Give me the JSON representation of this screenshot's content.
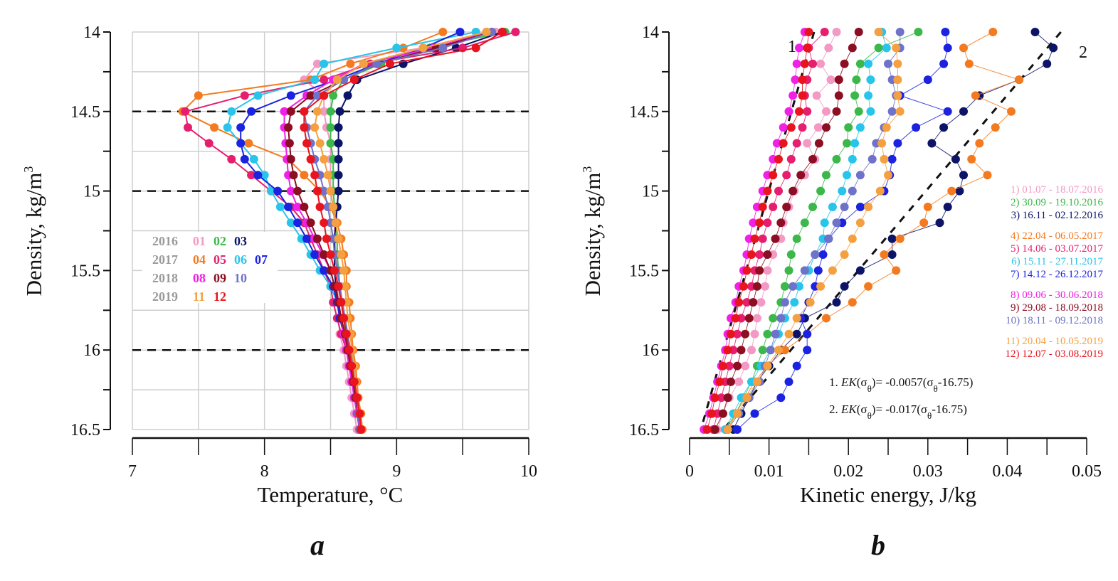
{
  "figure": {
    "panel_labels": [
      "a",
      "b"
    ]
  },
  "chart_data": [
    {
      "type": "line",
      "panel": "a",
      "title": "",
      "xlabel": "Temperature, °C",
      "ylabel": "Density, kg/m³",
      "ylabel_base": "Density, kg/m",
      "ylabel_sup": "3",
      "xlim": [
        7,
        10
      ],
      "ylim": [
        16.5,
        14
      ],
      "y_inverted": true,
      "xticks": [
        7,
        8,
        9,
        10
      ],
      "xtick_labels": [
        "7",
        "8",
        "9",
        "10"
      ],
      "yticks": [
        14,
        14.5,
        15,
        15.5,
        16,
        16.5
      ],
      "ytick_labels": [
        "14",
        "14.5",
        "15",
        "15.5",
        "16",
        "16.5"
      ],
      "grid": true,
      "reference_lines": [
        14.5,
        15.0,
        16.0
      ],
      "legend_position": "center-left",
      "legend": [
        {
          "year": "2016",
          "items": [
            {
              "label": "01",
              "series": 1
            },
            {
              "label": "02",
              "series": 2
            },
            {
              "label": "03",
              "series": 3
            }
          ]
        },
        {
          "year": "2017",
          "items": [
            {
              "label": "04",
              "series": 4
            },
            {
              "label": "05",
              "series": 5
            },
            {
              "label": "06",
              "series": 6
            },
            {
              "label": "07",
              "series": 7
            }
          ]
        },
        {
          "year": "2018",
          "items": [
            {
              "label": "08",
              "series": 8
            },
            {
              "label": "09",
              "series": 9
            },
            {
              "label": "10",
              "series": 10
            }
          ]
        },
        {
          "year": "2019",
          "items": [
            {
              "label": "11",
              "series": 11
            },
            {
              "label": "12",
              "series": 12
            }
          ]
        }
      ],
      "y": [
        14.0,
        14.1,
        14.2,
        14.3,
        14.4,
        14.5,
        14.6,
        14.7,
        14.8,
        14.9,
        15.0,
        15.1,
        15.2,
        15.3,
        15.4,
        15.5,
        15.6,
        15.7,
        15.8,
        15.9,
        16.0,
        16.1,
        16.2,
        16.3,
        16.4,
        16.5
      ],
      "series": [
        {
          "name": "01",
          "color": "#f29ac4",
          "values": [
            9.75,
            9.2,
            8.4,
            8.3,
            8.45,
            8.45,
            8.47,
            8.5,
            8.5,
            8.5,
            8.5,
            8.52,
            8.53,
            8.53,
            8.54,
            8.55,
            8.55,
            8.56,
            8.56,
            8.57,
            8.6,
            8.62,
            8.64,
            8.66,
            8.68,
            8.7
          ]
        },
        {
          "name": "02",
          "color": "#3cb84a",
          "values": [
            9.82,
            9.25,
            8.88,
            8.6,
            8.52,
            8.5,
            8.5,
            8.5,
            8.52,
            8.52,
            8.52,
            8.53,
            8.54,
            8.55,
            8.55,
            8.56,
            8.57,
            8.58,
            8.6,
            8.61,
            8.63,
            8.65,
            8.67,
            8.69,
            8.71,
            8.72
          ]
        },
        {
          "name": "03",
          "color": "#0c1468",
          "values": [
            9.8,
            9.45,
            9.05,
            8.7,
            8.63,
            8.57,
            8.56,
            8.56,
            8.56,
            8.56,
            8.56,
            8.55,
            8.54,
            8.53,
            8.53,
            8.53,
            8.54,
            8.56,
            8.58,
            8.6,
            8.62,
            8.65,
            8.67,
            8.69,
            8.7,
            8.72
          ]
        },
        {
          "name": "04",
          "color": "#f47a1f",
          "values": [
            9.35,
            9.05,
            8.65,
            8.35,
            7.5,
            7.38,
            7.62,
            7.88,
            8.18,
            8.3,
            8.42,
            8.5,
            8.55,
            8.58,
            8.6,
            8.62,
            8.62,
            8.64,
            8.65,
            8.66,
            8.67,
            8.69,
            8.7,
            8.71,
            8.73,
            8.74
          ]
        },
        {
          "name": "05",
          "color": "#e51f6e",
          "values": [
            9.9,
            9.5,
            8.8,
            8.45,
            7.85,
            7.4,
            7.42,
            7.58,
            7.75,
            7.9,
            8.05,
            8.2,
            8.3,
            8.35,
            8.4,
            8.45,
            8.5,
            8.52,
            8.55,
            8.58,
            8.62,
            8.65,
            8.67,
            8.69,
            8.71,
            8.73
          ]
        },
        {
          "name": "06",
          "color": "#29c4ea",
          "values": [
            9.6,
            9.0,
            8.45,
            8.38,
            7.95,
            7.75,
            7.72,
            7.82,
            7.92,
            8.0,
            8.05,
            8.12,
            8.2,
            8.28,
            8.35,
            8.42,
            8.5,
            8.55,
            8.58,
            8.6,
            8.63,
            8.65,
            8.67,
            8.69,
            8.71,
            8.72
          ]
        },
        {
          "name": "07",
          "color": "#1b22e0",
          "values": [
            9.48,
            9.2,
            8.85,
            8.55,
            8.2,
            7.9,
            7.82,
            7.82,
            7.85,
            7.95,
            8.1,
            8.18,
            8.25,
            8.32,
            8.38,
            8.45,
            8.52,
            8.55,
            8.57,
            8.6,
            8.62,
            8.64,
            8.66,
            8.68,
            8.7,
            8.72
          ]
        },
        {
          "name": "08",
          "color": "#f020e6",
          "values": [
            9.68,
            9.28,
            8.75,
            8.52,
            8.32,
            8.15,
            8.15,
            8.16,
            8.17,
            8.18,
            8.2,
            8.25,
            8.32,
            8.38,
            8.44,
            8.5,
            8.53,
            8.56,
            8.58,
            8.6,
            8.62,
            8.64,
            8.66,
            8.68,
            8.7,
            8.72
          ]
        },
        {
          "name": "09",
          "color": "#8b0e22",
          "values": [
            9.72,
            9.3,
            8.85,
            8.6,
            8.35,
            8.2,
            8.18,
            8.19,
            8.2,
            8.22,
            8.25,
            8.3,
            8.35,
            8.4,
            8.45,
            8.5,
            8.53,
            8.56,
            8.58,
            8.61,
            8.63,
            8.65,
            8.67,
            8.69,
            8.71,
            8.72
          ]
        },
        {
          "name": "10",
          "color": "#6e72c8",
          "values": [
            9.72,
            9.35,
            8.85,
            8.6,
            8.4,
            8.3,
            8.32,
            8.35,
            8.38,
            8.42,
            8.45,
            8.48,
            8.5,
            8.52,
            8.53,
            8.55,
            8.57,
            8.59,
            8.61,
            8.63,
            8.65,
            8.67,
            8.68,
            8.7,
            8.71,
            8.72
          ]
        },
        {
          "name": "11",
          "color": "#f5a040",
          "values": [
            9.68,
            9.2,
            8.75,
            8.55,
            8.45,
            8.4,
            8.38,
            8.42,
            8.45,
            8.48,
            8.5,
            8.52,
            8.54,
            8.56,
            8.58,
            8.6,
            8.61,
            8.62,
            8.63,
            8.65,
            8.66,
            8.68,
            8.69,
            8.7,
            8.72,
            8.73
          ]
        },
        {
          "name": "12",
          "color": "#e8141e",
          "values": [
            9.8,
            9.6,
            8.95,
            8.68,
            8.45,
            8.3,
            8.3,
            8.32,
            8.35,
            8.38,
            8.4,
            8.42,
            8.45,
            8.47,
            8.5,
            8.53,
            8.56,
            8.58,
            8.6,
            8.62,
            8.64,
            8.66,
            8.68,
            8.7,
            8.72,
            8.73
          ]
        }
      ]
    },
    {
      "type": "line",
      "panel": "b",
      "title": "",
      "xlabel": "Kinetic energy, J/kg",
      "ylabel": "Density, kg/m³",
      "ylabel_base": "Density, kg/m",
      "ylabel_sup": "3",
      "xlim": [
        0,
        0.05
      ],
      "ylim": [
        16.5,
        14
      ],
      "y_inverted": true,
      "xticks": [
        0,
        0.01,
        0.02,
        0.03,
        0.04,
        0.05
      ],
      "xtick_labels": [
        "0",
        "0.01",
        "0.02",
        "0.03",
        "0.04",
        "0.05"
      ],
      "yticks": [
        14,
        14.5,
        15,
        15.5,
        16,
        16.5
      ],
      "ytick_labels": [
        "14",
        "14.5",
        "15",
        "15.5",
        "16",
        "16.5"
      ],
      "grid": false,
      "legend_position": "right",
      "legend": [
        {
          "label": "1) 01.07 - 18.07.2016",
          "series": 1
        },
        {
          "label": "2) 30.09 - 19.10.2016",
          "series": 2
        },
        {
          "label": "3) 16.11 - 02.12.2016",
          "series": 3
        },
        {
          "label": "4) 22.04 - 06.05.2017",
          "series": 4
        },
        {
          "label": "5) 14.06 - 03.07.2017",
          "series": 5
        },
        {
          "label": "6) 15.11 - 27.11.2017",
          "series": 6
        },
        {
          "label": "7) 14.12 - 26.12.2017",
          "series": 7
        },
        {
          "label": "8) 09.06 - 30.06.2018",
          "series": 8
        },
        {
          "label": "9) 29.08 - 18.09.2018",
          "series": 9
        },
        {
          "label": "10) 18.11 - 09.12.2018",
          "series": 10
        },
        {
          "label": "11) 20.04 - 10.05.2019",
          "series": 11
        },
        {
          "label": "12) 12.07 - 03.08.2019",
          "series": 12
        }
      ],
      "fits": [
        {
          "id": "1",
          "label": "1",
          "equation_prefix": "1.",
          "equation": "EK(σθ)= -0.0057(σθ-16.75)",
          "slope": -0.0057,
          "offset": 16.75,
          "y_range": [
            14.0,
            16.5
          ]
        },
        {
          "id": "2",
          "label": "2",
          "equation_prefix": "2.",
          "equation": "EK(σθ)= -0.017(σθ-16.75)",
          "slope": -0.017,
          "offset": 16.75,
          "y_range": [
            14.0,
            16.5
          ]
        }
      ],
      "y": [
        14.0,
        14.1,
        14.2,
        14.3,
        14.4,
        14.5,
        14.6,
        14.7,
        14.8,
        14.9,
        15.0,
        15.1,
        15.2,
        15.3,
        15.4,
        15.5,
        15.6,
        15.7,
        15.8,
        15.9,
        16.0,
        16.1,
        16.2,
        16.3,
        16.4,
        16.5
      ],
      "series": [
        {
          "name": "1",
          "color": "#f29ac4",
          "values": [
            0.0185,
            0.0175,
            0.0165,
            0.0178,
            0.016,
            0.0172,
            0.0162,
            0.0148,
            0.0158,
            0.0145,
            0.0132,
            0.0125,
            0.0118,
            0.0115,
            0.0105,
            0.0098,
            0.0095,
            0.009,
            0.0085,
            0.0082,
            0.0078,
            0.007,
            0.0062,
            0.005,
            0.0042,
            0.0035
          ]
        },
        {
          "name": "2",
          "color": "#3cb84a",
          "values": [
            0.0288,
            0.0238,
            0.0215,
            0.021,
            0.0208,
            0.0213,
            0.02,
            0.0198,
            0.0185,
            0.0172,
            0.0165,
            0.0155,
            0.0145,
            0.0135,
            0.0128,
            0.0125,
            0.012,
            0.0115,
            0.0105,
            0.0098,
            0.0092,
            0.0085,
            0.0078,
            0.0068,
            0.0058,
            0.0045
          ]
        },
        {
          "name": "3",
          "color": "#0c1468",
          "values": [
            0.0435,
            0.0458,
            0.045,
            0.0415,
            0.0365,
            0.0345,
            0.032,
            0.0305,
            0.0335,
            0.0345,
            0.034,
            0.0325,
            0.0315,
            0.0255,
            0.0255,
            0.0215,
            0.0195,
            0.0185,
            0.0145,
            0.0135,
            0.0115,
            0.01,
            0.0085,
            0.0075,
            0.0065,
            0.0055
          ]
        },
        {
          "name": "4",
          "color": "#f47a1f",
          "values": [
            0.0382,
            0.0345,
            0.0352,
            0.0415,
            0.036,
            0.0405,
            0.0385,
            0.0365,
            0.0355,
            0.0375,
            0.033,
            0.03,
            0.0295,
            0.0265,
            0.0245,
            0.026,
            0.0225,
            0.0205,
            0.0172,
            0.0148,
            0.012,
            0.0098,
            0.0082,
            0.007,
            0.0058,
            0.0048
          ]
        },
        {
          "name": "5",
          "color": "#e51f6e",
          "values": [
            0.017,
            0.015,
            0.0155,
            0.0148,
            0.0145,
            0.0148,
            0.0142,
            0.0135,
            0.0128,
            0.0122,
            0.0112,
            0.0105,
            0.0098,
            0.0092,
            0.0088,
            0.0082,
            0.0078,
            0.0072,
            0.0065,
            0.006,
            0.0055,
            0.005,
            0.0045,
            0.004,
            0.0035,
            0.003
          ]
        },
        {
          "name": "6",
          "color": "#29c4ea",
          "values": [
            0.0242,
            0.0248,
            0.0225,
            0.0228,
            0.0225,
            0.0228,
            0.0215,
            0.0208,
            0.0205,
            0.0198,
            0.0192,
            0.018,
            0.017,
            0.0168,
            0.0158,
            0.015,
            0.0138,
            0.0132,
            0.012,
            0.0112,
            0.0102,
            0.009,
            0.0078,
            0.0065,
            0.0055,
            0.0045
          ]
        },
        {
          "name": "7",
          "color": "#1b22e0",
          "values": [
            0.0322,
            0.0325,
            0.032,
            0.03,
            0.0265,
            0.0325,
            0.0285,
            0.0262,
            0.0255,
            0.0252,
            0.0245,
            0.0215,
            0.0192,
            0.0175,
            0.0168,
            0.0162,
            0.0158,
            0.015,
            0.014,
            0.0148,
            0.0148,
            0.0135,
            0.0125,
            0.0115,
            0.0082,
            0.006
          ]
        },
        {
          "name": "8",
          "color": "#f020e6",
          "values": [
            0.0145,
            0.0138,
            0.0135,
            0.0133,
            0.013,
            0.0125,
            0.0118,
            0.011,
            0.0105,
            0.0098,
            0.0092,
            0.0085,
            0.008,
            0.0075,
            0.0072,
            0.0068,
            0.0062,
            0.0058,
            0.0052,
            0.0048,
            0.0045,
            0.004,
            0.0035,
            0.003,
            0.0025,
            0.0018
          ]
        },
        {
          "name": "9",
          "color": "#8b0e22",
          "values": [
            0.0213,
            0.0205,
            0.0195,
            0.0188,
            0.0188,
            0.0185,
            0.0172,
            0.0163,
            0.0155,
            0.014,
            0.013,
            0.0122,
            0.0115,
            0.0108,
            0.0098,
            0.0088,
            0.0085,
            0.008,
            0.0075,
            0.007,
            0.0065,
            0.006,
            0.0052,
            0.0048,
            0.0042,
            0.0032
          ]
        },
        {
          "name": "10",
          "color": "#6e72c8",
          "values": [
            0.0265,
            0.0265,
            0.025,
            0.0255,
            0.026,
            0.0255,
            0.0245,
            0.0235,
            0.023,
            0.0215,
            0.0205,
            0.0195,
            0.0185,
            0.0175,
            0.0158,
            0.0145,
            0.013,
            0.012,
            0.0115,
            0.0108,
            0.0102,
            0.0095,
            0.0088,
            0.0075,
            0.0062,
            0.0048
          ]
        },
        {
          "name": "11",
          "color": "#f5a040",
          "values": [
            0.0238,
            0.026,
            0.0262,
            0.0262,
            0.0262,
            0.0265,
            0.0248,
            0.0242,
            0.0245,
            0.025,
            0.024,
            0.0225,
            0.0215,
            0.0205,
            0.0195,
            0.018,
            0.0165,
            0.0152,
            0.0135,
            0.0125,
            0.0112,
            0.0098,
            0.0085,
            0.0072,
            0.006,
            0.0048
          ]
        },
        {
          "name": "12",
          "color": "#e8141e",
          "values": [
            0.015,
            0.0148,
            0.0145,
            0.0142,
            0.0142,
            0.0138,
            0.0128,
            0.0118,
            0.0112,
            0.0105,
            0.0098,
            0.0092,
            0.0088,
            0.0082,
            0.0078,
            0.0072,
            0.0068,
            0.0062,
            0.0058,
            0.0052,
            0.0048,
            0.0042,
            0.0038,
            0.0032,
            0.0028,
            0.0022
          ]
        }
      ]
    }
  ]
}
